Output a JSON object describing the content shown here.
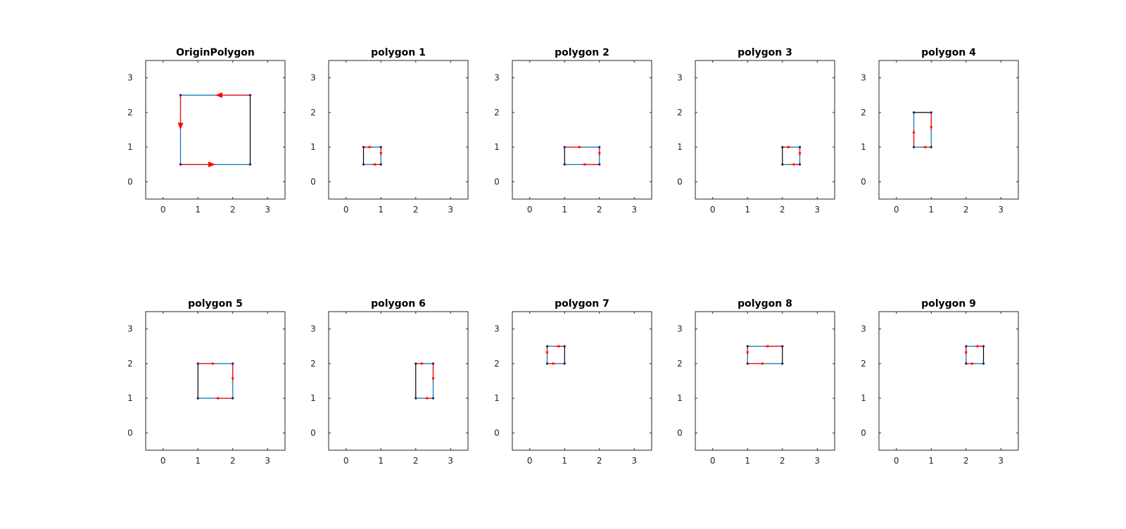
{
  "figure": {
    "background": "#ffffff",
    "colors": {
      "edge": "#0072BD",
      "arrow": "#ff0000",
      "closing_edge": "#000000",
      "vertex": "#1f1f5f",
      "grid": "#dcdcdc"
    }
  },
  "chart_data": [
    {
      "type": "line",
      "title": "OriginPolygon",
      "xlim": [
        -0.5,
        3.5
      ],
      "ylim": [
        -0.5,
        3.5
      ],
      "xticks": [
        0,
        1,
        2,
        3
      ],
      "yticks": [
        0,
        1,
        2,
        3
      ],
      "grid": true,
      "x": [
        2.5,
        0.5,
        0.5,
        2.5
      ],
      "y": [
        2.5,
        2.5,
        0.5,
        0.5
      ]
    },
    {
      "type": "line",
      "title": "polygon 1",
      "xlim": [
        -0.5,
        3.5
      ],
      "ylim": [
        -0.5,
        3.5
      ],
      "xticks": [
        0,
        1,
        2,
        3
      ],
      "yticks": [
        0,
        1,
        2,
        3
      ],
      "grid": true,
      "x": [
        0.5,
        1,
        1,
        0.5
      ],
      "y": [
        1,
        1,
        0.5,
        0.5
      ]
    },
    {
      "type": "line",
      "title": "polygon 2",
      "xlim": [
        -0.5,
        3.5
      ],
      "ylim": [
        -0.5,
        3.5
      ],
      "xticks": [
        0,
        1,
        2,
        3
      ],
      "yticks": [
        0,
        1,
        2,
        3
      ],
      "grid": true,
      "x": [
        1,
        2,
        2,
        1
      ],
      "y": [
        1,
        1,
        0.5,
        0.5
      ]
    },
    {
      "type": "line",
      "title": "polygon 3",
      "xlim": [
        -0.5,
        3.5
      ],
      "ylim": [
        -0.5,
        3.5
      ],
      "xticks": [
        0,
        1,
        2,
        3
      ],
      "yticks": [
        0,
        1,
        2,
        3
      ],
      "grid": true,
      "x": [
        2,
        2.5,
        2.5,
        2
      ],
      "y": [
        1,
        1,
        0.5,
        0.5
      ]
    },
    {
      "type": "line",
      "title": "polygon 4",
      "xlim": [
        -0.5,
        3.5
      ],
      "ylim": [
        -0.5,
        3.5
      ],
      "xticks": [
        0,
        1,
        2,
        3
      ],
      "yticks": [
        0,
        1,
        2,
        3
      ],
      "grid": true,
      "x": [
        1,
        1,
        0.5,
        0.5
      ],
      "y": [
        2,
        1,
        1,
        2
      ]
    },
    {
      "type": "line",
      "title": "polygon 5",
      "xlim": [
        -0.5,
        3.5
      ],
      "ylim": [
        -0.5,
        3.5
      ],
      "xticks": [
        0,
        1,
        2,
        3
      ],
      "yticks": [
        0,
        1,
        2,
        3
      ],
      "grid": true,
      "x": [
        1,
        2,
        2,
        1
      ],
      "y": [
        2,
        2,
        1,
        1
      ]
    },
    {
      "type": "line",
      "title": "polygon 6",
      "xlim": [
        -0.5,
        3.5
      ],
      "ylim": [
        -0.5,
        3.5
      ],
      "xticks": [
        0,
        1,
        2,
        3
      ],
      "yticks": [
        0,
        1,
        2,
        3
      ],
      "grid": true,
      "x": [
        2,
        2.5,
        2.5,
        2
      ],
      "y": [
        2,
        2,
        1,
        1
      ]
    },
    {
      "type": "line",
      "title": "polygon 7",
      "xlim": [
        -0.5,
        3.5
      ],
      "ylim": [
        -0.5,
        3.5
      ],
      "xticks": [
        0,
        1,
        2,
        3
      ],
      "yticks": [
        0,
        1,
        2,
        3
      ],
      "grid": true,
      "x": [
        1,
        0.5,
        0.5,
        1
      ],
      "y": [
        2.5,
        2.5,
        2,
        2
      ]
    },
    {
      "type": "line",
      "title": "polygon 8",
      "xlim": [
        -0.5,
        3.5
      ],
      "ylim": [
        -0.5,
        3.5
      ],
      "xticks": [
        0,
        1,
        2,
        3
      ],
      "yticks": [
        0,
        1,
        2,
        3
      ],
      "grid": true,
      "x": [
        2,
        1,
        1,
        2
      ],
      "y": [
        2.5,
        2.5,
        2,
        2
      ]
    },
    {
      "type": "line",
      "title": "polygon 9",
      "xlim": [
        -0.5,
        3.5
      ],
      "ylim": [
        -0.5,
        3.5
      ],
      "xticks": [
        0,
        1,
        2,
        3
      ],
      "yticks": [
        0,
        1,
        2,
        3
      ],
      "grid": true,
      "x": [
        2.5,
        2,
        2,
        2.5
      ],
      "y": [
        2.5,
        2.5,
        2,
        2
      ]
    }
  ]
}
